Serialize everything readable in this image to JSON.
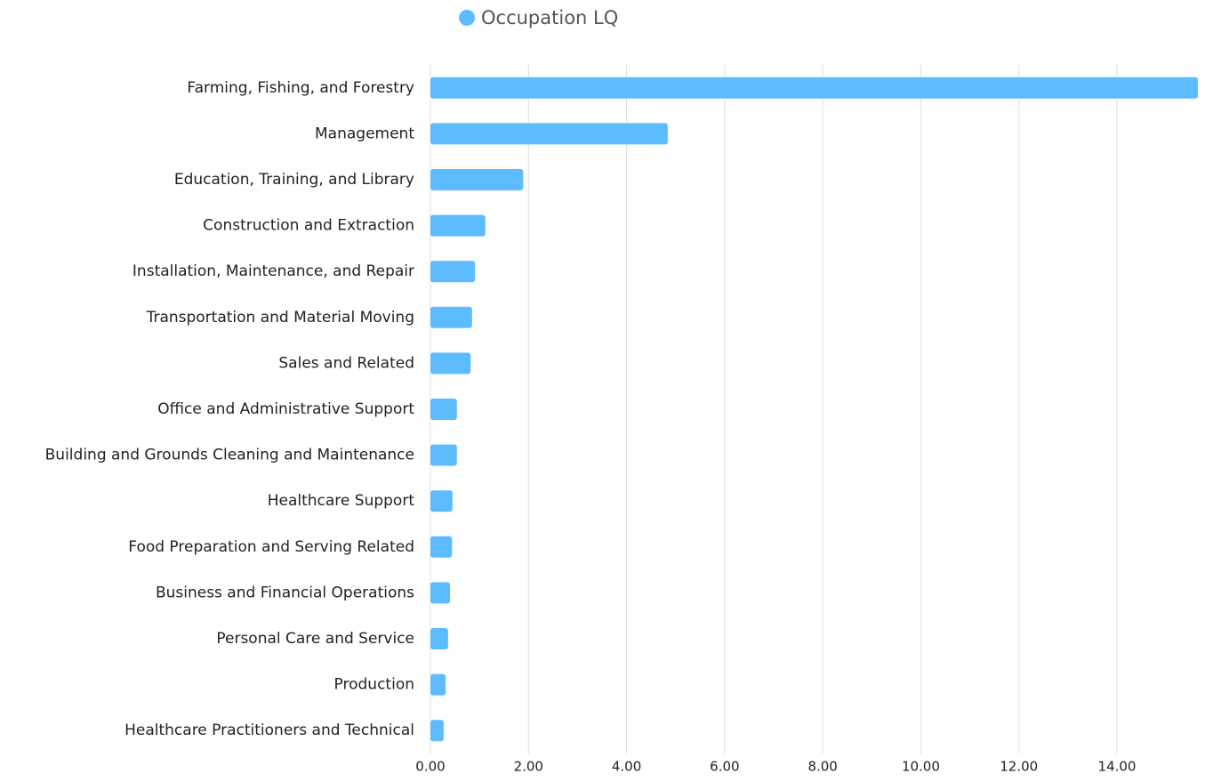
{
  "chart_data": {
    "type": "bar",
    "orientation": "horizontal",
    "categories": [
      "Farming, Fishing, and Forestry",
      "Management",
      "Education, Training, and Library",
      "Construction and Extraction",
      "Installation, Maintenance, and Repair",
      "Transportation and Material Moving",
      "Sales and Related",
      "Office and Administrative Support",
      "Building and Grounds Cleaning and Maintenance",
      "Healthcare Support",
      "Food Preparation and Serving Related",
      "Business and Financial Operations",
      "Personal Care and Service",
      "Production",
      "Healthcare Practitioners and Technical"
    ],
    "series": [
      {
        "name": "Occupation LQ",
        "color": "#5cbcff",
        "values": [
          15.65,
          4.84,
          1.89,
          1.12,
          0.91,
          0.85,
          0.82,
          0.54,
          0.54,
          0.45,
          0.44,
          0.4,
          0.36,
          0.31,
          0.27
        ]
      }
    ],
    "xlim": [
      0,
      15.65
    ],
    "xticks": [
      {
        "value": 0,
        "label": "0.00"
      },
      {
        "value": 2,
        "label": "2.00"
      },
      {
        "value": 4,
        "label": "4.00"
      },
      {
        "value": 6,
        "label": "6.00"
      },
      {
        "value": 8,
        "label": "8.00"
      },
      {
        "value": 10,
        "label": "10.00"
      },
      {
        "value": 12,
        "label": "12.00"
      },
      {
        "value": 14,
        "label": "14.00"
      }
    ],
    "grid": true,
    "legend": "top"
  }
}
